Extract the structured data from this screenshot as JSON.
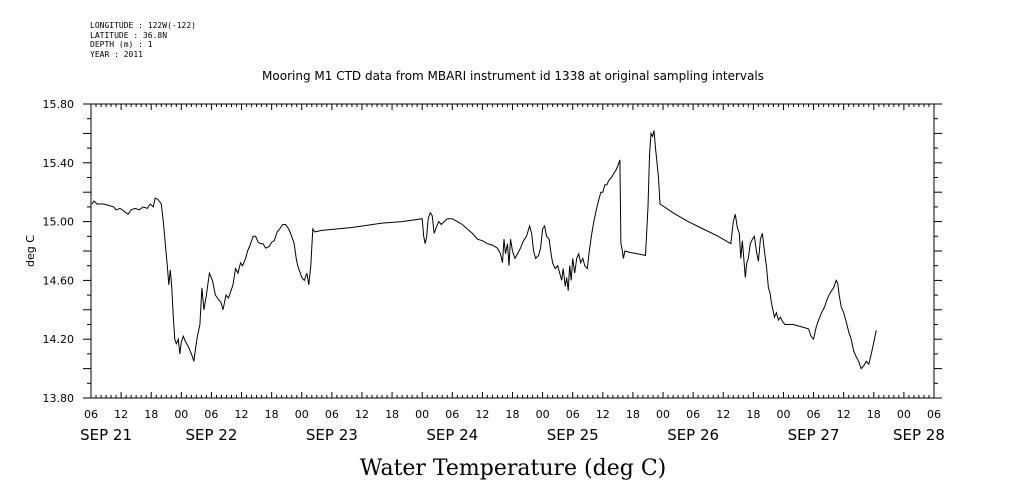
{
  "header": {
    "longitude": "LONGITUDE : 122W(-122)",
    "latitude": "LATITUDE : 36.8N",
    "depth": "DEPTH (m) : 1",
    "year": "YEAR : 2011"
  },
  "chart_data": {
    "type": "line",
    "title": "Mooring M1 CTD data from MBARI instrument id 1338 at original sampling intervals",
    "xlabel": "Water Temperature (deg C)",
    "ylabel": "deg C",
    "ylim": [
      13.8,
      15.8
    ],
    "yticks": [
      "13.80",
      "14.20",
      "14.60",
      "15.00",
      "15.40",
      "15.80"
    ],
    "xlim_hours": [
      0,
      168
    ],
    "x_unit": "hours after SEP 21 06:00, 2011",
    "hour_labels": [
      "06",
      "12",
      "18",
      "00",
      "06",
      "12",
      "18",
      "00",
      "06",
      "12",
      "18",
      "00",
      "06",
      "12",
      "18",
      "00",
      "06",
      "12",
      "18",
      "00",
      "06",
      "12",
      "18",
      "00",
      "06",
      "12",
      "18",
      "00",
      "06"
    ],
    "day_labels": [
      {
        "label": "SEP 21",
        "hour": 3
      },
      {
        "label": "SEP 22",
        "hour": 24
      },
      {
        "label": "SEP 23",
        "hour": 48
      },
      {
        "label": "SEP 24",
        "hour": 72
      },
      {
        "label": "SEP 25",
        "hour": 96
      },
      {
        "label": "SEP 26",
        "hour": 120
      },
      {
        "label": "SEP 27",
        "hour": 144
      },
      {
        "label": "SEP 28",
        "hour": 165
      }
    ],
    "grid": false,
    "series": [
      {
        "color": "#000000",
        "points": [
          [
            0.2,
            15.12
          ],
          [
            0.6,
            15.14
          ],
          [
            1.2,
            15.12
          ],
          [
            2.5,
            15.12
          ],
          [
            3.5,
            15.11
          ],
          [
            4.5,
            15.1
          ],
          [
            5.0,
            15.08
          ],
          [
            5.8,
            15.09
          ],
          [
            6.6,
            15.07
          ],
          [
            7.4,
            15.05
          ],
          [
            8.0,
            15.08
          ],
          [
            8.8,
            15.09
          ],
          [
            9.6,
            15.08
          ],
          [
            10.4,
            15.1
          ],
          [
            11.2,
            15.09
          ],
          [
            11.8,
            15.12
          ],
          [
            12.4,
            15.1
          ],
          [
            12.8,
            15.16
          ],
          [
            13.4,
            15.15
          ],
          [
            14.0,
            15.12
          ],
          [
            14.4,
            15.0
          ],
          [
            14.8,
            14.85
          ],
          [
            15.2,
            14.7
          ],
          [
            15.5,
            14.57
          ],
          [
            15.8,
            14.67
          ],
          [
            16.1,
            14.55
          ],
          [
            16.4,
            14.35
          ],
          [
            16.7,
            14.2
          ],
          [
            17.0,
            14.17
          ],
          [
            17.4,
            14.2
          ],
          [
            17.7,
            14.1
          ],
          [
            18.0,
            14.18
          ],
          [
            18.4,
            14.22
          ],
          [
            18.9,
            14.18
          ],
          [
            19.4,
            14.15
          ],
          [
            20.0,
            14.1
          ],
          [
            20.5,
            14.05
          ],
          [
            20.8,
            14.13
          ],
          [
            21.2,
            14.22
          ],
          [
            21.7,
            14.3
          ],
          [
            22.1,
            14.55
          ],
          [
            22.5,
            14.4
          ],
          [
            23.0,
            14.5
          ],
          [
            23.6,
            14.65
          ],
          [
            24.2,
            14.6
          ],
          [
            24.8,
            14.5
          ],
          [
            25.4,
            14.47
          ],
          [
            25.9,
            14.45
          ],
          [
            26.3,
            14.4
          ],
          [
            26.9,
            14.5
          ],
          [
            27.4,
            14.48
          ],
          [
            27.8,
            14.52
          ],
          [
            28.3,
            14.57
          ],
          [
            28.8,
            14.68
          ],
          [
            29.3,
            14.65
          ],
          [
            29.8,
            14.72
          ],
          [
            30.2,
            14.7
          ],
          [
            30.8,
            14.75
          ],
          [
            31.2,
            14.8
          ],
          [
            31.8,
            14.85
          ],
          [
            32.3,
            14.9
          ],
          [
            32.8,
            14.9
          ],
          [
            33.3,
            14.86
          ],
          [
            33.8,
            14.85
          ],
          [
            34.3,
            14.85
          ],
          [
            34.8,
            14.82
          ],
          [
            35.5,
            14.83
          ],
          [
            36.0,
            14.86
          ],
          [
            36.5,
            14.87
          ],
          [
            37.1,
            14.93
          ],
          [
            37.6,
            14.95
          ],
          [
            38.2,
            14.98
          ],
          [
            38.8,
            14.98
          ],
          [
            39.4,
            14.95
          ],
          [
            40.0,
            14.9
          ],
          [
            40.5,
            14.85
          ],
          [
            40.9,
            14.75
          ],
          [
            41.2,
            14.7
          ],
          [
            41.6,
            14.66
          ],
          [
            42.0,
            14.62
          ],
          [
            42.5,
            14.6
          ],
          [
            43.0,
            14.65
          ],
          [
            43.4,
            14.57
          ],
          [
            43.8,
            14.7
          ],
          [
            44.2,
            14.95
          ],
          [
            44.6,
            14.93
          ],
          [
            46.0,
            14.94
          ],
          [
            52.0,
            14.96
          ],
          [
            58.0,
            14.99
          ],
          [
            62.0,
            15.0
          ],
          [
            66.0,
            15.02
          ],
          [
            66.3,
            14.9
          ],
          [
            66.6,
            14.85
          ],
          [
            66.9,
            14.9
          ],
          [
            67.2,
            15.02
          ],
          [
            67.6,
            15.06
          ],
          [
            68.0,
            15.04
          ],
          [
            68.4,
            14.92
          ],
          [
            68.8,
            14.96
          ],
          [
            69.3,
            15.0
          ],
          [
            69.8,
            14.98
          ],
          [
            70.4,
            15.0
          ],
          [
            71.0,
            15.02
          ],
          [
            72.0,
            15.02
          ],
          [
            73.0,
            15.0
          ],
          [
            74.0,
            14.98
          ],
          [
            75.0,
            14.95
          ],
          [
            76.0,
            14.92
          ],
          [
            77.0,
            14.88
          ],
          [
            78.0,
            14.87
          ],
          [
            79.0,
            14.85
          ],
          [
            80.0,
            14.84
          ],
          [
            81.0,
            14.82
          ],
          [
            81.6,
            14.78
          ],
          [
            82.0,
            14.72
          ],
          [
            82.3,
            14.88
          ],
          [
            82.6,
            14.78
          ],
          [
            83.0,
            14.85
          ],
          [
            83.3,
            14.7
          ],
          [
            83.6,
            14.88
          ],
          [
            84.0,
            14.8
          ],
          [
            84.5,
            14.75
          ],
          [
            85.0,
            14.78
          ],
          [
            85.6,
            14.82
          ],
          [
            86.2,
            14.87
          ],
          [
            86.8,
            14.9
          ],
          [
            87.4,
            14.97
          ],
          [
            87.8,
            14.92
          ],
          [
            88.2,
            14.8
          ],
          [
            88.6,
            14.75
          ],
          [
            89.2,
            14.77
          ],
          [
            89.6,
            14.82
          ],
          [
            90.0,
            14.95
          ],
          [
            90.4,
            14.97
          ],
          [
            90.8,
            14.9
          ],
          [
            91.3,
            14.88
          ],
          [
            91.7,
            14.78
          ],
          [
            92.0,
            14.72
          ],
          [
            92.5,
            14.68
          ],
          [
            93.0,
            14.7
          ],
          [
            93.4,
            14.65
          ],
          [
            93.8,
            14.6
          ],
          [
            94.1,
            14.68
          ],
          [
            94.5,
            14.56
          ],
          [
            94.8,
            14.62
          ],
          [
            95.1,
            14.53
          ],
          [
            95.4,
            14.7
          ],
          [
            95.7,
            14.6
          ],
          [
            96.0,
            14.75
          ],
          [
            96.4,
            14.65
          ],
          [
            96.8,
            14.75
          ],
          [
            97.2,
            14.78
          ],
          [
            97.6,
            14.72
          ],
          [
            98.0,
            14.75
          ],
          [
            98.4,
            14.7
          ],
          [
            98.9,
            14.68
          ],
          [
            99.3,
            14.8
          ],
          [
            99.8,
            14.92
          ],
          [
            100.2,
            15.0
          ],
          [
            100.7,
            15.08
          ],
          [
            101.2,
            15.15
          ],
          [
            101.6,
            15.2
          ],
          [
            102.0,
            15.2
          ],
          [
            102.4,
            15.25
          ],
          [
            102.8,
            15.25
          ],
          [
            103.2,
            15.28
          ],
          [
            103.7,
            15.3
          ],
          [
            104.2,
            15.33
          ],
          [
            104.6,
            15.35
          ],
          [
            105.0,
            15.38
          ],
          [
            105.4,
            15.42
          ],
          [
            105.6,
            14.85
          ],
          [
            105.8,
            14.82
          ],
          [
            106.1,
            14.75
          ],
          [
            106.4,
            14.8
          ],
          [
            107.5,
            14.79
          ],
          [
            109.0,
            14.78
          ],
          [
            110.5,
            14.77
          ],
          [
            111.0,
            15.1
          ],
          [
            111.3,
            15.45
          ],
          [
            111.6,
            15.6
          ],
          [
            111.9,
            15.58
          ],
          [
            112.2,
            15.62
          ],
          [
            112.5,
            15.5
          ],
          [
            112.8,
            15.4
          ],
          [
            113.1,
            15.3
          ],
          [
            113.4,
            15.12
          ],
          [
            116.0,
            15.06
          ],
          [
            119.0,
            15.0
          ],
          [
            122.0,
            14.95
          ],
          [
            125.0,
            14.9
          ],
          [
            127.5,
            14.85
          ],
          [
            128.0,
            15.0
          ],
          [
            128.4,
            15.05
          ],
          [
            128.8,
            14.96
          ],
          [
            129.2,
            14.92
          ],
          [
            129.5,
            14.75
          ],
          [
            129.8,
            14.87
          ],
          [
            130.1,
            14.75
          ],
          [
            130.4,
            14.62
          ],
          [
            130.7,
            14.72
          ],
          [
            131.0,
            14.75
          ],
          [
            131.4,
            14.85
          ],
          [
            131.8,
            14.88
          ],
          [
            132.2,
            14.9
          ],
          [
            132.6,
            14.8
          ],
          [
            133.0,
            14.73
          ],
          [
            133.4,
            14.88
          ],
          [
            133.8,
            14.92
          ],
          [
            134.2,
            14.8
          ],
          [
            134.6,
            14.7
          ],
          [
            135.0,
            14.55
          ],
          [
            135.3,
            14.52
          ],
          [
            135.6,
            14.45
          ],
          [
            135.9,
            14.4
          ],
          [
            136.2,
            14.35
          ],
          [
            136.6,
            14.38
          ],
          [
            137.0,
            14.33
          ],
          [
            137.4,
            14.35
          ],
          [
            137.8,
            14.32
          ],
          [
            138.3,
            14.3
          ],
          [
            139.0,
            14.3
          ],
          [
            140.0,
            14.3
          ],
          [
            141.0,
            14.29
          ],
          [
            142.0,
            14.28
          ],
          [
            143.0,
            14.27
          ],
          [
            143.5,
            14.22
          ],
          [
            144.0,
            14.2
          ],
          [
            144.5,
            14.28
          ],
          [
            145.0,
            14.33
          ],
          [
            145.6,
            14.38
          ],
          [
            146.2,
            14.42
          ],
          [
            146.8,
            14.48
          ],
          [
            147.4,
            14.52
          ],
          [
            148.0,
            14.55
          ],
          [
            148.5,
            14.6
          ],
          [
            148.8,
            14.58
          ],
          [
            149.1,
            14.5
          ],
          [
            149.5,
            14.42
          ],
          [
            150.0,
            14.38
          ],
          [
            150.5,
            14.32
          ],
          [
            151.0,
            14.25
          ],
          [
            151.5,
            14.2
          ],
          [
            152.0,
            14.12
          ],
          [
            152.5,
            14.08
          ],
          [
            153.0,
            14.05
          ],
          [
            153.5,
            14.0
          ],
          [
            154.0,
            14.02
          ],
          [
            154.5,
            14.05
          ],
          [
            155.0,
            14.03
          ],
          [
            155.5,
            14.1
          ],
          [
            156.0,
            14.18
          ],
          [
            156.5,
            14.26
          ]
        ]
      }
    ]
  }
}
